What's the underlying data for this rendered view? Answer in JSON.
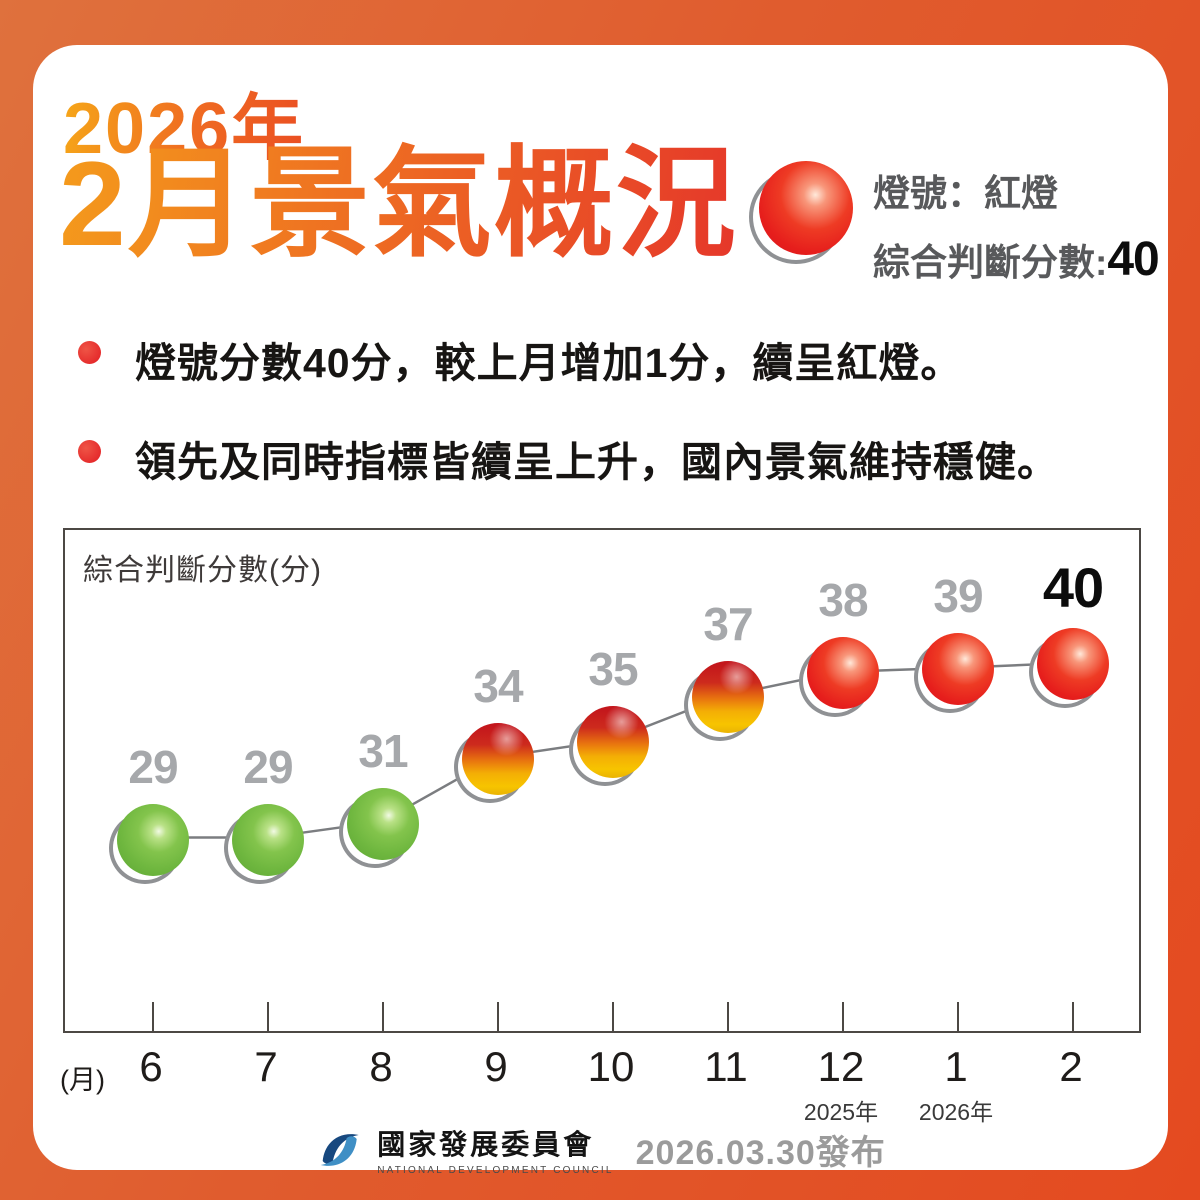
{
  "header": {
    "year_line": "2026年",
    "title_line": "2月景氣概況",
    "light_label": "燈號：紅燈",
    "score_label": "綜合判斷分數:",
    "score_value": "40",
    "light_color": "red"
  },
  "bullets": [
    {
      "text": "燈號分數40分，較上月增加1分，續呈紅燈。"
    },
    {
      "text": "領先及同時指標皆續呈上升，國內景氣維持穩健。"
    }
  ],
  "chart_data": {
    "type": "line",
    "title": "綜合判斷分數(分)",
    "x_axis_unit": "(月)",
    "months": [
      "6",
      "7",
      "8",
      "9",
      "10",
      "11",
      "12",
      "1",
      "2"
    ],
    "scores": [
      29,
      29,
      31,
      34,
      35,
      37,
      38,
      39,
      40
    ],
    "lights": [
      "green",
      "green",
      "green",
      "yellow-red",
      "yellow-red",
      "yellow-red",
      "red",
      "red",
      "red"
    ],
    "year_markers": [
      {
        "under_month_index": 6,
        "label": "2025年"
      },
      {
        "under_month_index": 7,
        "label": "2026年"
      }
    ],
    "highlight_last": true,
    "grid": false,
    "legend": false,
    "ylim": [
      26,
      45
    ]
  },
  "footer": {
    "org_name": "國家發展委員會",
    "org_name_en": "National Development Council",
    "publish_date": "2026.03.30發布"
  },
  "colors": {
    "frame_gradient_from": "#df713d",
    "frame_gradient_to": "#e44a20",
    "title_gradient_from": "#f49b1c",
    "title_gradient_to": "#e5372a",
    "red_light": "#e61e1c",
    "yellow_red_light_top": "#c3161c",
    "yellow_red_light_bottom": "#f7c400",
    "green_light": "#6fb73f",
    "score_label_gray": "#a6a8ab",
    "info_text_gray": "#58595b",
    "bullet_red": "#e52a2b"
  }
}
